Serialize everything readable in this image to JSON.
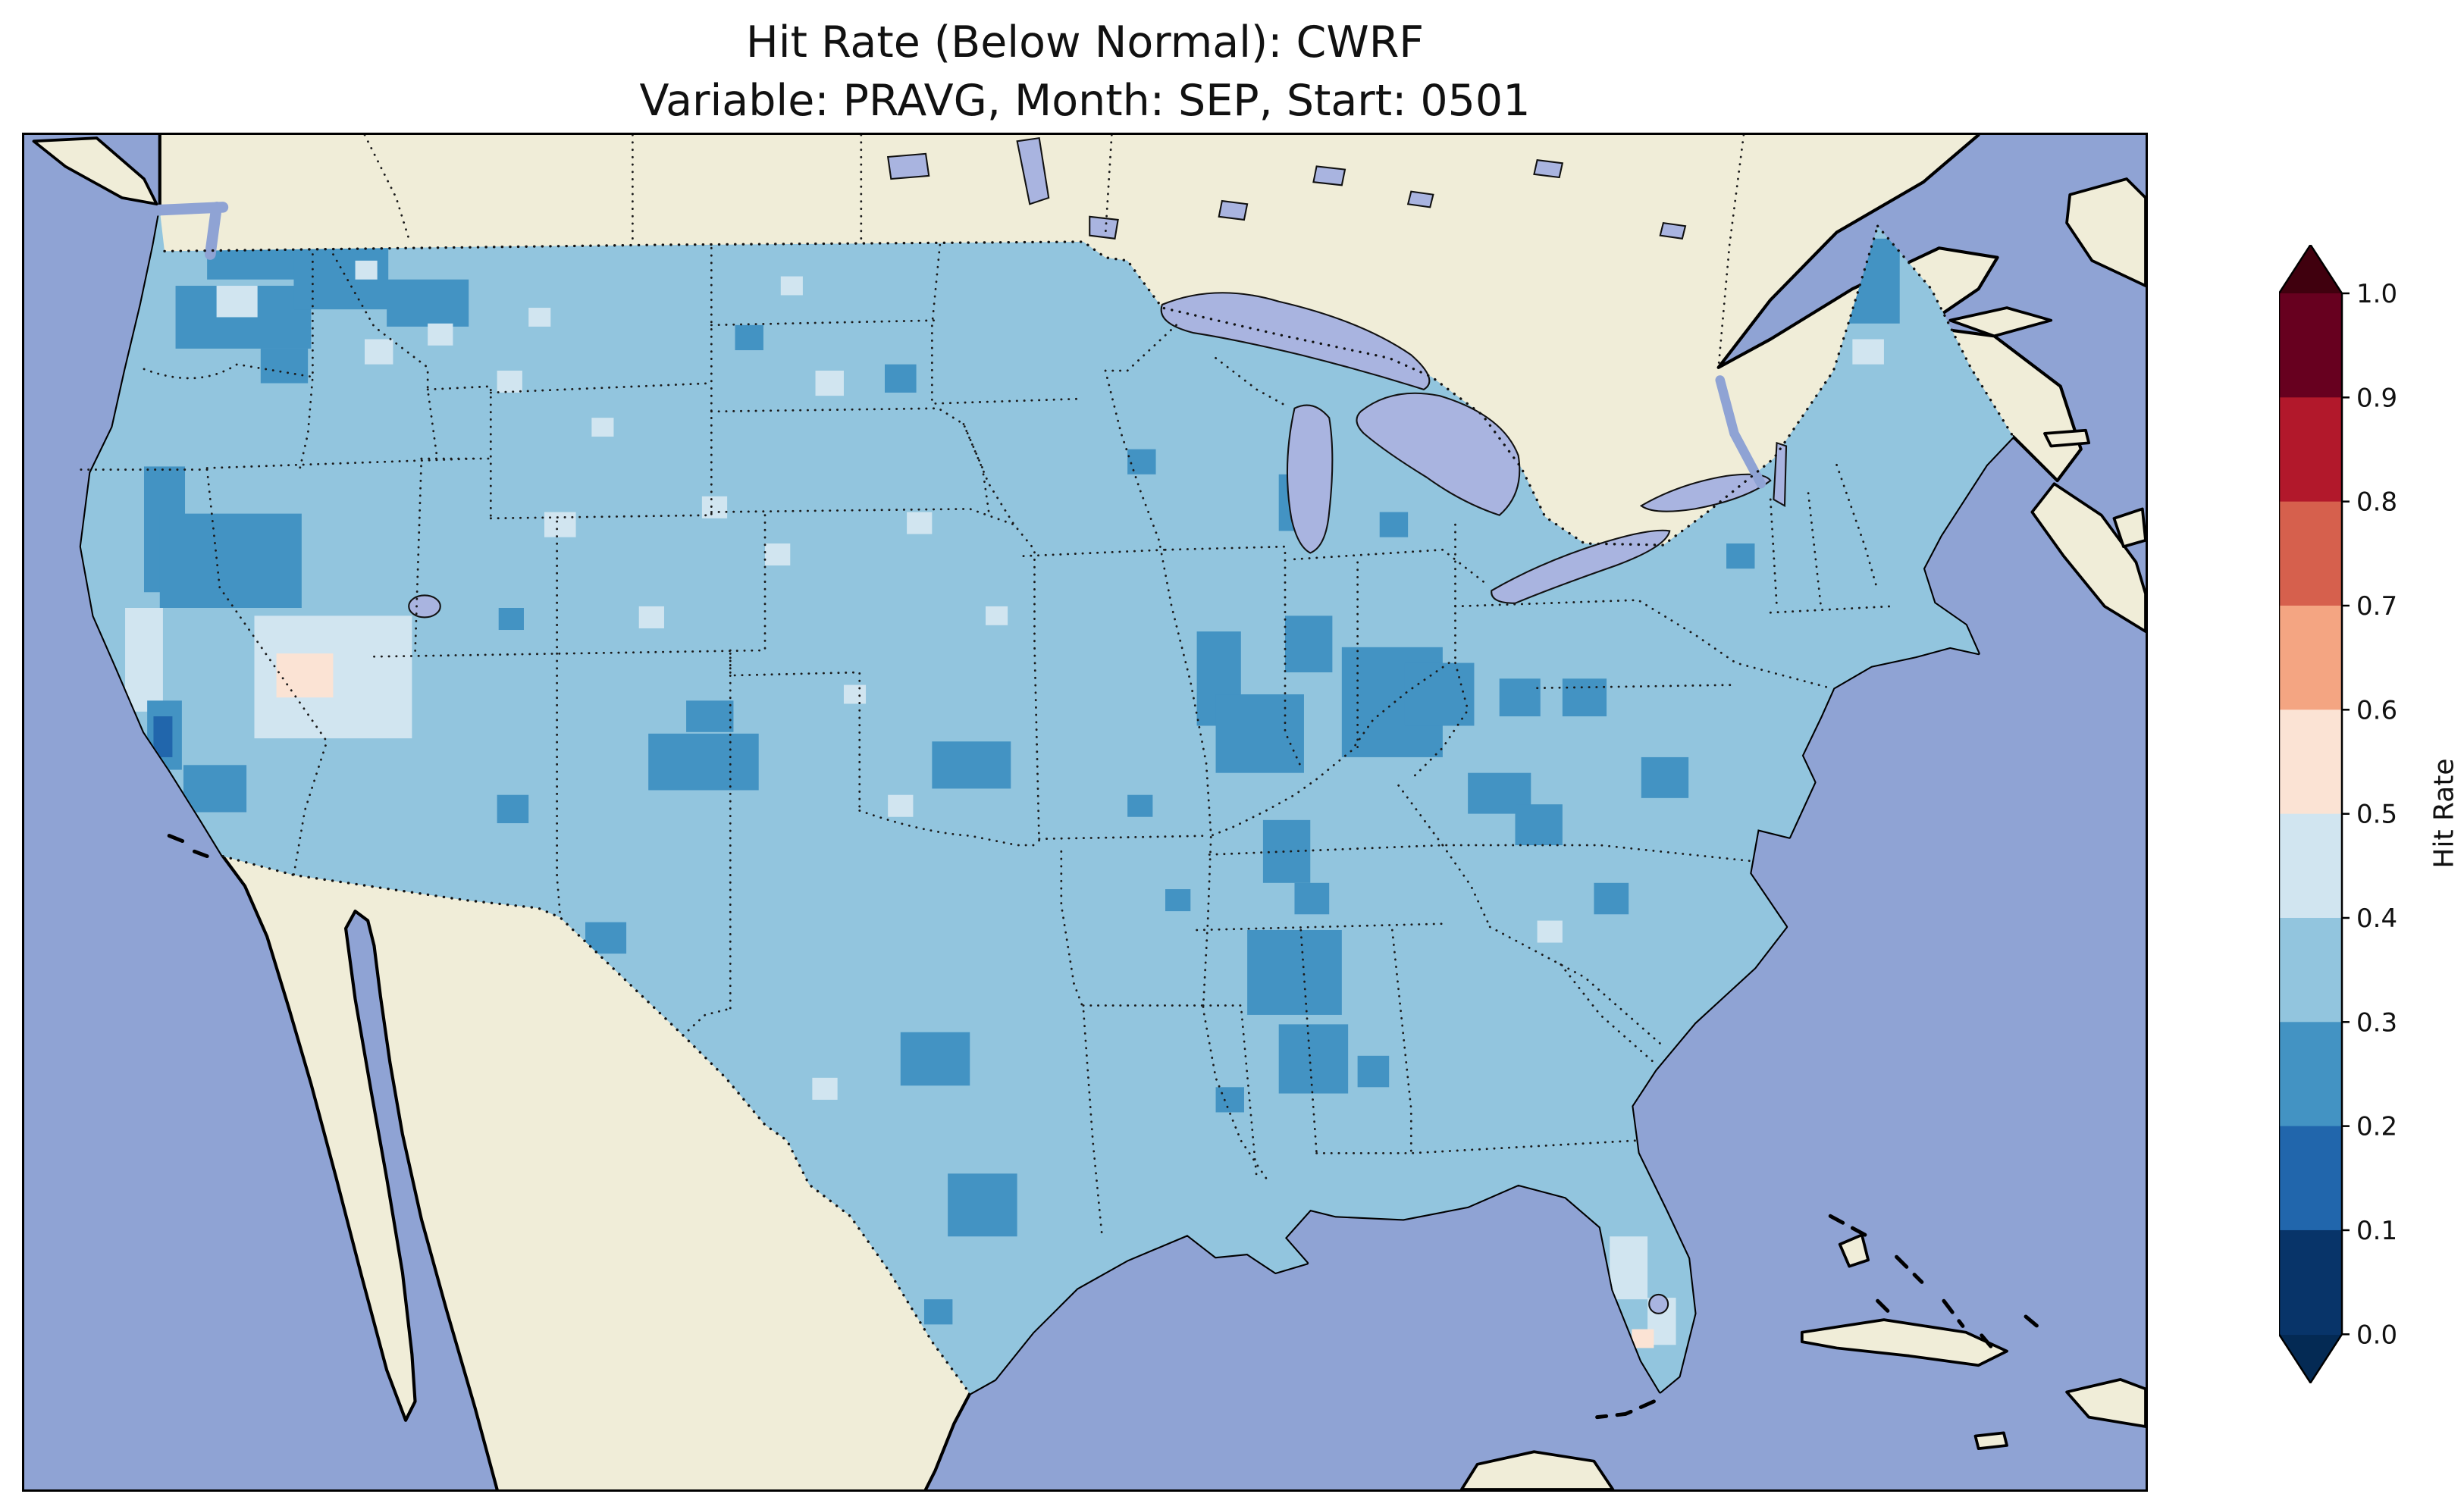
{
  "title": {
    "line1": "Hit Rate (Below Normal): CWRF",
    "line2": "Variable: PRAVG, Month: SEP, Start: 0501"
  },
  "colorbar": {
    "label": "Hit Rate",
    "ticks": [
      "1.0",
      "0.9",
      "0.8",
      "0.7",
      "0.6",
      "0.5",
      "0.4",
      "0.3",
      "0.2",
      "0.1",
      "0.0"
    ],
    "segments_top_to_bottom": [
      "#67001f",
      "#b2182b",
      "#d6604d",
      "#f4a582",
      "#fbe3d4",
      "#d1e5f0",
      "#92c5de",
      "#4393c3",
      "#2166ac",
      "#083469"
    ],
    "over_color": "#40000e",
    "under_color": "#042a54",
    "outline_color": "#000000"
  },
  "map": {
    "ocean_color": "#8fa3d4",
    "land_color": "#f0edd8",
    "lake_color": "#a9b4e0",
    "coastline_color": "#000000",
    "border_color": "#1a1a1a",
    "base_value_color": "#92c5de"
  },
  "chart_data": {
    "type": "heatmap",
    "title": "Hit Rate (Below Normal): CWRF",
    "subtitle": "Variable: PRAVG, Month: SEP, Start: 0501",
    "model": "CWRF",
    "variable": "PRAVG",
    "month": "SEP",
    "start": "0501",
    "metric": "Hit Rate",
    "category": "Below Normal",
    "colorbar_label": "Hit Rate",
    "range": [
      0.0,
      1.0
    ],
    "bin_size": 0.1,
    "legend_position": "right",
    "dominant_value_bin": "0.3-0.4",
    "bin_colors": {
      "0.1-0.2": "#2166ac",
      "0.2-0.3": "#4393c3",
      "0.3-0.4": "#92c5de",
      "0.4-0.5": "#d1e5f0",
      "0.5-0.6": "#fbe3d4"
    },
    "region_summary": [
      "Most of CONUS in 0.3-0.4 hit-rate bin",
      "Lower hit rates (0.2-0.3) over Pacific Northwest, northern Rockies, central Colorado, Kansas, west Texas, lower Midwest (MO/IL/IN/OH), Mississippi/Alabama, Carolinas-Virginia and Maine",
      "Higher (0.4-0.5 and 0.5-0.6) pale cells over Nevada/Utah basin, California central valley and south Florida",
      "Isolated 0.1-0.2 minimum over central California Sierra"
    ],
    "patches": [
      [
        116,
        66,
        56,
        26,
        "0.2-0.3"
      ],
      [
        96,
        96,
        86,
        40,
        "0.2-0.3"
      ],
      [
        150,
        136,
        30,
        22,
        "0.2-0.3"
      ],
      [
        171,
        71,
        60,
        40,
        "0.2-0.3"
      ],
      [
        230,
        92,
        52,
        30,
        "0.2-0.3"
      ],
      [
        76,
        211,
        26,
        80,
        "0.2-0.3"
      ],
      [
        86,
        241,
        90,
        60,
        "0.2-0.3"
      ],
      [
        146,
        306,
        100,
        78,
        "0.4-0.5"
      ],
      [
        160,
        330,
        36,
        28,
        "0.5-0.6"
      ],
      [
        64,
        301,
        24,
        66,
        "0.4-0.5"
      ],
      [
        78,
        360,
        22,
        44,
        "0.2-0.3"
      ],
      [
        82,
        370,
        12,
        26,
        "0.1-0.2"
      ],
      [
        101,
        401,
        40,
        30,
        "0.2-0.3"
      ],
      [
        122,
        96,
        26,
        20,
        "0.4-0.5"
      ],
      [
        216,
        130,
        18,
        16,
        "0.4-0.5"
      ],
      [
        300,
        150,
        16,
        14,
        "0.4-0.5"
      ],
      [
        256,
        120,
        16,
        14,
        "0.4-0.5"
      ],
      [
        451,
        121,
        18,
        16,
        "0.2-0.3"
      ],
      [
        502,
        150,
        18,
        16,
        "0.4-0.5"
      ],
      [
        546,
        146,
        20,
        18,
        "0.2-0.3"
      ],
      [
        560,
        240,
        16,
        14,
        "0.4-0.5"
      ],
      [
        430,
        230,
        16,
        14,
        "0.4-0.5"
      ],
      [
        330,
        240,
        20,
        16,
        "0.4-0.5"
      ],
      [
        301,
        301,
        16,
        14,
        "0.2-0.3"
      ],
      [
        390,
        300,
        16,
        14,
        "0.4-0.5"
      ],
      [
        396,
        381,
        70,
        36,
        "0.2-0.3"
      ],
      [
        420,
        360,
        30,
        20,
        "0.2-0.3"
      ],
      [
        356,
        501,
        26,
        20,
        "0.2-0.3"
      ],
      [
        300,
        420,
        20,
        18,
        "0.2-0.3"
      ],
      [
        576,
        386,
        50,
        30,
        "0.2-0.3"
      ],
      [
        548,
        420,
        16,
        14,
        "0.4-0.5"
      ],
      [
        470,
        260,
        16,
        14,
        "0.4-0.5"
      ],
      [
        610,
        300,
        14,
        12,
        "0.4-0.5"
      ],
      [
        520,
        350,
        14,
        12,
        "0.4-0.5"
      ],
      [
        556,
        571,
        44,
        34,
        "0.2-0.3"
      ],
      [
        586,
        661,
        44,
        40,
        "0.2-0.3"
      ],
      [
        571,
        741,
        18,
        16,
        "0.2-0.3"
      ],
      [
        640,
        770,
        16,
        14,
        "0.4-0.5"
      ],
      [
        744,
        316,
        28,
        60,
        "0.2-0.3"
      ],
      [
        756,
        356,
        56,
        50,
        "0.2-0.3"
      ],
      [
        800,
        306,
        30,
        36,
        "0.2-0.3"
      ],
      [
        836,
        326,
        64,
        70,
        "0.2-0.3"
      ],
      [
        876,
        336,
        44,
        40,
        "0.2-0.3"
      ],
      [
        936,
        346,
        26,
        24,
        "0.2-0.3"
      ],
      [
        786,
        436,
        30,
        40,
        "0.2-0.3"
      ],
      [
        806,
        476,
        22,
        20,
        "0.2-0.3"
      ],
      [
        776,
        506,
        60,
        54,
        "0.2-0.3"
      ],
      [
        796,
        566,
        44,
        44,
        "0.2-0.3"
      ],
      [
        846,
        586,
        20,
        20,
        "0.2-0.3"
      ],
      [
        756,
        606,
        18,
        16,
        "0.2-0.3"
      ],
      [
        916,
        406,
        40,
        26,
        "0.2-0.3"
      ],
      [
        946,
        426,
        30,
        26,
        "0.2-0.3"
      ],
      [
        1026,
        396,
        30,
        26,
        "0.2-0.3"
      ],
      [
        976,
        346,
        28,
        24,
        "0.2-0.3"
      ],
      [
        996,
        476,
        22,
        20,
        "0.2-0.3"
      ],
      [
        960,
        500,
        16,
        14,
        "0.4-0.5"
      ],
      [
        796,
        216,
        30,
        36,
        "0.2-0.3"
      ],
      [
        860,
        240,
        18,
        16,
        "0.2-0.3"
      ],
      [
        700,
        200,
        18,
        16,
        "0.2-0.3"
      ],
      [
        1146,
        66,
        44,
        54,
        "0.2-0.3"
      ],
      [
        1160,
        130,
        20,
        16,
        "0.4-0.5"
      ],
      [
        1006,
        701,
        24,
        40,
        "0.4-0.5"
      ],
      [
        1030,
        740,
        18,
        30,
        "0.4-0.5"
      ],
      [
        1020,
        760,
        14,
        12,
        "0.5-0.6"
      ],
      [
        1080,
        260,
        18,
        16,
        "0.2-0.3"
      ],
      [
        724,
        480,
        16,
        14,
        "0.2-0.3"
      ],
      [
        700,
        420,
        16,
        14,
        "0.2-0.3"
      ],
      [
        210,
        80,
        14,
        12,
        "0.4-0.5"
      ],
      [
        320,
        110,
        14,
        12,
        "0.4-0.5"
      ],
      [
        360,
        180,
        14,
        12,
        "0.4-0.5"
      ],
      [
        480,
        90,
        14,
        12,
        "0.4-0.5"
      ],
      [
        500,
        600,
        16,
        14,
        "0.4-0.5"
      ]
    ]
  }
}
